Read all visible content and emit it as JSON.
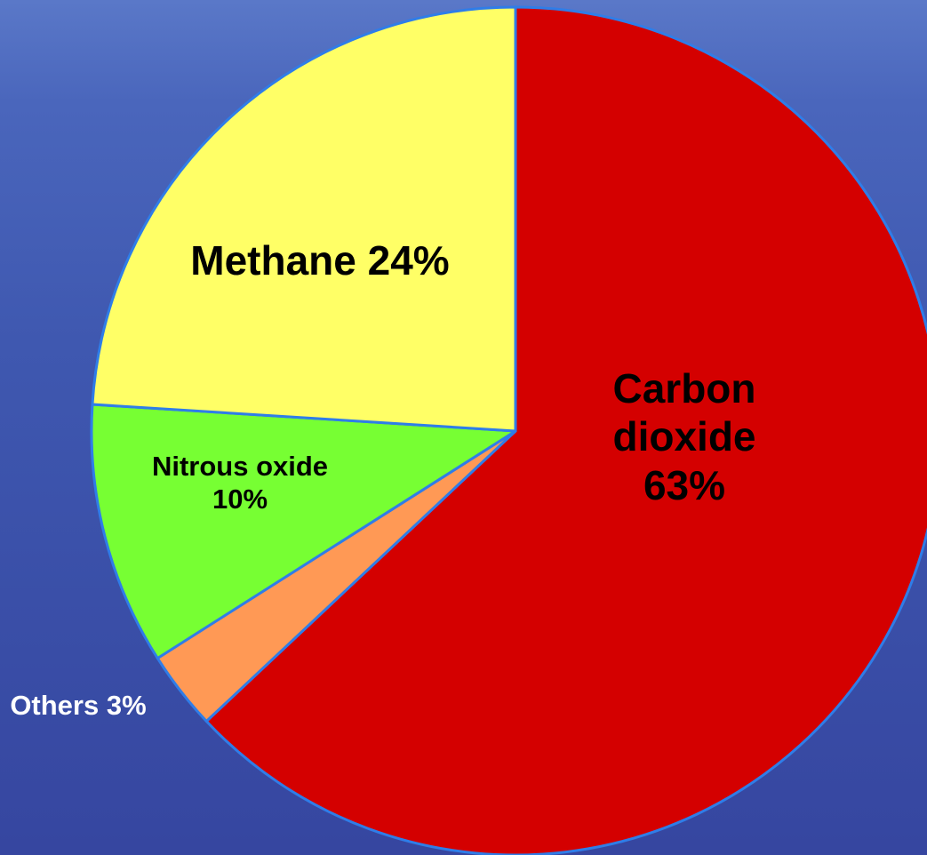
{
  "chart_data": {
    "type": "pie",
    "categories": [
      "Carbon dioxide",
      "Others",
      "Nitrous oxide",
      "Methane"
    ],
    "values": [
      63,
      3,
      10,
      24
    ],
    "value_labels": [
      "63%",
      "3%",
      "10%",
      "24%"
    ],
    "colors": [
      "#d40000",
      "#ff9955",
      "#77ff33",
      "#ffff66"
    ]
  }
}
